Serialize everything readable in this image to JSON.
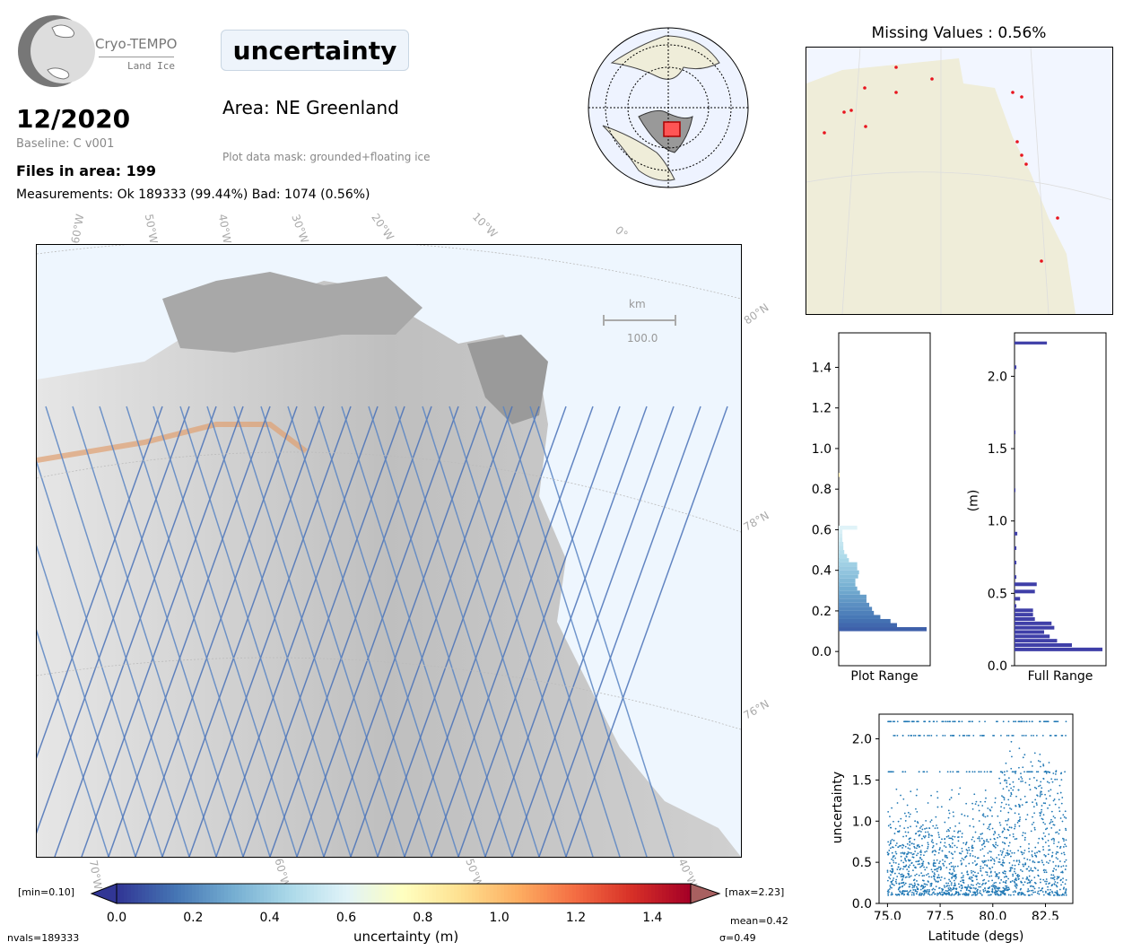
{
  "header": {
    "logo_line1": "Cryo-TEMPO",
    "logo_line2": "Land Ice",
    "parameter_title": "uncertainty",
    "date": "12/2020",
    "baseline": "Baseline: C v001",
    "files_in_area": "Files in area: 199",
    "measurements": "Measurements: Ok 189333 (99.44%) Bad: 1074 (0.56%)",
    "area": "Area: NE Greenland",
    "mask": "Plot data mask: grounded+floating ice"
  },
  "main_map": {
    "lon_labels": [
      "60°W",
      "50°W",
      "40°W",
      "30°W",
      "20°W",
      "10°W",
      "0°"
    ],
    "lat_labels": [
      "80°N",
      "78°N",
      "76°N"
    ],
    "bottom_lon_labels": [
      "70°W",
      "60°W",
      "50°W",
      "40°W"
    ],
    "scale_unit": "km",
    "scale_value": "100.0"
  },
  "missing_panel": {
    "title": "Missing Values : 0.56%"
  },
  "colorbar": {
    "ticks": [
      "0.0",
      "0.2",
      "0.4",
      "0.6",
      "0.8",
      "1.0",
      "1.2",
      "1.4"
    ],
    "label": "uncertainty (m)",
    "min_label": "[min=0.10]",
    "max_label": "[max=2.23]",
    "nvals": "nvals=189333",
    "mean": "mean=0.42",
    "sigma": "σ=0.49",
    "colors": [
      "#313695",
      "#4575b4",
      "#74add1",
      "#abd9e9",
      "#e0f3f8",
      "#ffffbf",
      "#fee090",
      "#fdae61",
      "#f46d43",
      "#d73027",
      "#a50026"
    ]
  },
  "chart_data": [
    {
      "type": "bar",
      "orientation": "horizontal",
      "xlabel": "Plot Range",
      "ylabel": "",
      "ylim": [
        -0.07,
        1.57
      ],
      "yticks": [
        "0.0",
        "0.2",
        "0.4",
        "0.6",
        "0.8",
        "1.0",
        "1.2",
        "1.4"
      ],
      "bins": [
        0.1,
        0.12,
        0.14,
        0.16,
        0.18,
        0.2,
        0.22,
        0.24,
        0.26,
        0.28,
        0.3,
        0.32,
        0.34,
        0.36,
        0.38,
        0.4,
        0.42,
        0.44,
        0.46,
        0.48,
        0.5,
        0.52,
        0.54,
        0.56,
        0.58,
        0.6,
        0.86
      ],
      "values": [
        95,
        63,
        56,
        45,
        38,
        36,
        33,
        30,
        30,
        23,
        20,
        18,
        18,
        21,
        22,
        20,
        20,
        11,
        9,
        6,
        5,
        5,
        4,
        4,
        4,
        20,
        1
      ]
    },
    {
      "type": "bar",
      "orientation": "horizontal",
      "xlabel": "Full Range",
      "ylabel": "(m)",
      "ylim": [
        0.0,
        2.3
      ],
      "yticks": [
        "0.0",
        "0.5",
        "1.0",
        "1.5",
        "2.0"
      ],
      "bins": [
        0.1,
        0.13,
        0.16,
        0.19,
        0.22,
        0.25,
        0.28,
        0.31,
        0.34,
        0.37,
        0.4,
        0.45,
        0.5,
        0.55,
        0.6,
        0.7,
        0.8,
        0.9,
        1.2,
        1.6,
        2.05,
        2.22
      ],
      "values": [
        95,
        62,
        46,
        38,
        32,
        43,
        40,
        22,
        20,
        20,
        2,
        6,
        22,
        24,
        2,
        2,
        2,
        3,
        1,
        1,
        2,
        35
      ]
    },
    {
      "type": "scatter",
      "xlabel": "Latitude (degs)",
      "ylabel": "uncertainty",
      "xlim": [
        74.6,
        83.8
      ],
      "ylim": [
        0.0,
        2.3
      ],
      "xticks": [
        "75.0",
        "77.5",
        "80.0",
        "82.5"
      ],
      "yticks": [
        "0.0",
        "0.5",
        "1.0",
        "1.5",
        "2.0"
      ],
      "color": "#1f77b4",
      "x_range": [
        75.0,
        83.5
      ],
      "y_range": [
        0.1,
        2.23
      ]
    }
  ]
}
